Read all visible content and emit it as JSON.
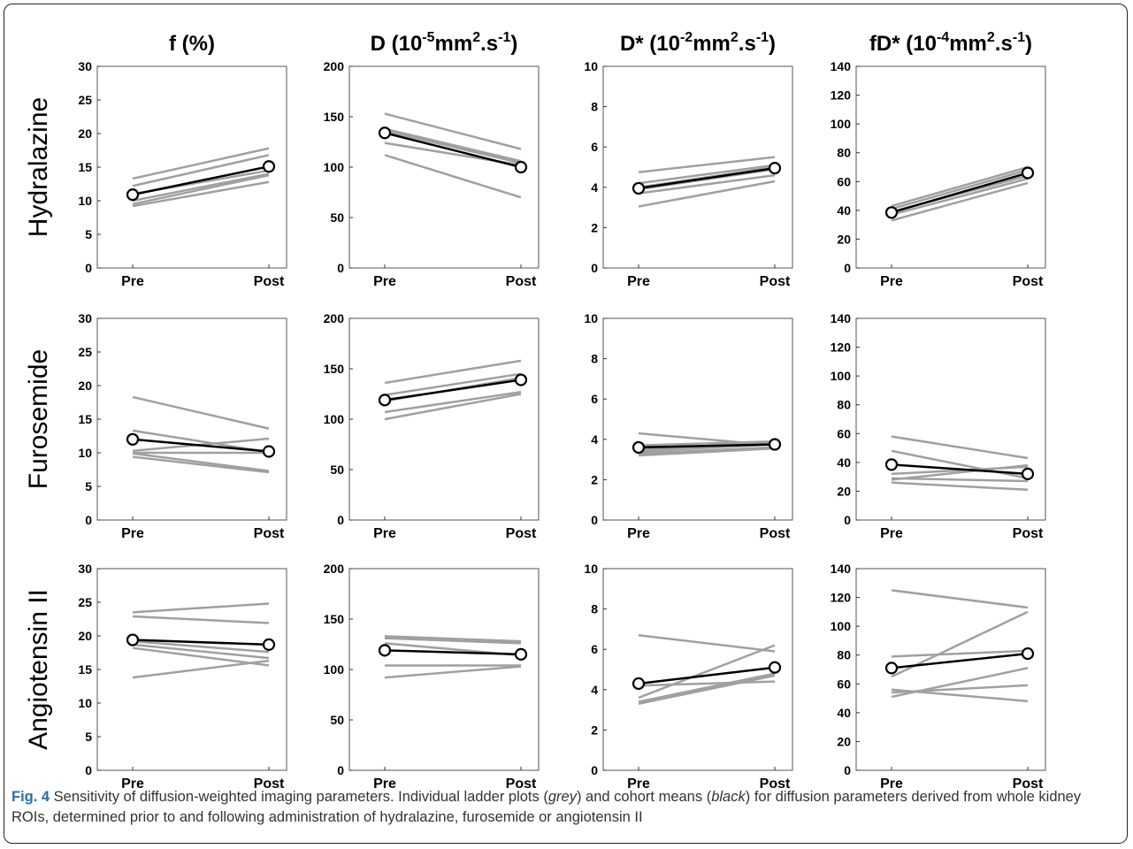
{
  "col_titles": [
    {
      "main": "f (%)"
    },
    {
      "main": "D (10",
      "sup1": "-5",
      "mid": "mm",
      "sup2": "2",
      "mid2": ".s",
      "sup3": "-1",
      "end": ")"
    },
    {
      "main": "D* (10",
      "sup1": "-2",
      "mid": "mm",
      "sup2": "2",
      "mid2": ".s",
      "sup3": "-1",
      "end": ")"
    },
    {
      "main": "fD* (10",
      "sup1": "-4",
      "mid": "mm",
      "sup2": "2",
      "mid2": ".s",
      "sup3": "-1",
      "end": ")"
    }
  ],
  "row_labels": [
    "Hydralazine",
    "Furosemide",
    "Angiotensin II"
  ],
  "colors": {
    "individual": "#a0a0a0",
    "mean": "#000000"
  },
  "caption": {
    "label": "Fig. 4",
    "text_1": " Sensitivity of diffusion-weighted imaging parameters. Individual ladder plots (",
    "grey": "grey",
    "text_2": ") and cohort means (",
    "black": "black",
    "text_3": ") for diffusion parameters derived from whole kidney ROIs, determined prior to and following administration of hydralazine, furosemide or angiotensin II"
  },
  "chart_data": [
    {
      "type": "line",
      "row": "Hydralazine",
      "title": "f (%)",
      "categories": [
        "Pre",
        "Post"
      ],
      "ylim": [
        0,
        30
      ],
      "yticks": [
        0,
        5,
        10,
        15,
        20,
        25,
        30
      ],
      "series": [
        {
          "values": [
            13.3,
            17.8
          ]
        },
        {
          "values": [
            12.2,
            16.8
          ]
        },
        {
          "values": [
            11.0,
            14.5
          ]
        },
        {
          "values": [
            10.0,
            14.0
          ]
        },
        {
          "values": [
            9.5,
            13.8
          ]
        },
        {
          "values": [
            9.2,
            12.8
          ]
        }
      ],
      "mean": {
        "values": [
          10.9,
          15.1
        ]
      }
    },
    {
      "type": "line",
      "row": "Hydralazine",
      "title": "D",
      "categories": [
        "Pre",
        "Post"
      ],
      "ylim": [
        0,
        200
      ],
      "yticks": [
        0,
        50,
        100,
        150,
        200
      ],
      "series": [
        {
          "values": [
            153,
            118
          ]
        },
        {
          "values": [
            138,
            106
          ]
        },
        {
          "values": [
            136,
            104
          ]
        },
        {
          "values": [
            124,
            102
          ]
        },
        {
          "values": [
            112,
            70
          ]
        }
      ],
      "mean": {
        "values": [
          134,
          100
        ]
      }
    },
    {
      "type": "line",
      "row": "Hydralazine",
      "title": "D*",
      "categories": [
        "Pre",
        "Post"
      ],
      "ylim": [
        0,
        10
      ],
      "yticks": [
        0,
        2,
        4,
        6,
        8,
        10
      ],
      "series": [
        {
          "values": [
            4.75,
            5.5
          ]
        },
        {
          "values": [
            4.2,
            5.1
          ]
        },
        {
          "values": [
            4.0,
            5.0
          ]
        },
        {
          "values": [
            3.9,
            4.9
          ]
        },
        {
          "values": [
            3.7,
            4.6
          ]
        },
        {
          "values": [
            3.05,
            4.3
          ]
        }
      ],
      "mean": {
        "values": [
          3.95,
          4.95
        ]
      }
    },
    {
      "type": "line",
      "row": "Hydralazine",
      "title": "fD*",
      "categories": [
        "Pre",
        "Post"
      ],
      "ylim": [
        0,
        140
      ],
      "yticks": [
        0,
        20,
        40,
        60,
        80,
        100,
        120,
        140
      ],
      "series": [
        {
          "values": [
            43,
            70
          ]
        },
        {
          "values": [
            41,
            68
          ]
        },
        {
          "values": [
            39,
            64
          ]
        },
        {
          "values": [
            37,
            62
          ]
        },
        {
          "values": [
            33,
            59
          ]
        }
      ],
      "mean": {
        "values": [
          38.5,
          66
        ]
      }
    },
    {
      "type": "line",
      "row": "Furosemide",
      "title": "f (%)",
      "categories": [
        "Pre",
        "Post"
      ],
      "ylim": [
        0,
        30
      ],
      "yticks": [
        0,
        5,
        10,
        15,
        20,
        25,
        30
      ],
      "series": [
        {
          "values": [
            18.3,
            13.6
          ]
        },
        {
          "values": [
            13.3,
            10.1
          ]
        },
        {
          "values": [
            10.3,
            12.1
          ]
        },
        {
          "values": [
            10.0,
            10.0
          ]
        },
        {
          "values": [
            9.9,
            7.3
          ]
        },
        {
          "values": [
            9.4,
            7.1
          ]
        }
      ],
      "mean": {
        "values": [
          12.0,
          10.2
        ]
      }
    },
    {
      "type": "line",
      "row": "Furosemide",
      "title": "D",
      "categories": [
        "Pre",
        "Post"
      ],
      "ylim": [
        0,
        200
      ],
      "yticks": [
        0,
        50,
        100,
        150,
        200
      ],
      "series": [
        {
          "values": [
            136,
            158
          ]
        },
        {
          "values": [
            124,
            145
          ]
        },
        {
          "values": [
            118,
            141
          ]
        },
        {
          "values": [
            107,
            127
          ]
        },
        {
          "values": [
            100,
            125
          ]
        }
      ],
      "mean": {
        "values": [
          119,
          139
        ]
      }
    },
    {
      "type": "line",
      "row": "Furosemide",
      "title": "D*",
      "categories": [
        "Pre",
        "Post"
      ],
      "ylim": [
        0,
        10
      ],
      "yticks": [
        0,
        2,
        4,
        6,
        8,
        10
      ],
      "series": [
        {
          "values": [
            4.3,
            3.7
          ]
        },
        {
          "values": [
            3.7,
            3.9
          ]
        },
        {
          "values": [
            3.5,
            3.85
          ]
        },
        {
          "values": [
            3.4,
            3.75
          ]
        },
        {
          "values": [
            3.3,
            3.6
          ]
        },
        {
          "values": [
            3.2,
            3.55
          ]
        }
      ],
      "mean": {
        "values": [
          3.6,
          3.75
        ]
      }
    },
    {
      "type": "line",
      "row": "Furosemide",
      "title": "fD*",
      "categories": [
        "Pre",
        "Post"
      ],
      "ylim": [
        0,
        140
      ],
      "yticks": [
        0,
        20,
        40,
        60,
        80,
        100,
        120,
        140
      ],
      "series": [
        {
          "values": [
            58,
            43
          ]
        },
        {
          "values": [
            48,
            29
          ]
        },
        {
          "values": [
            32,
            37
          ]
        },
        {
          "values": [
            29,
            27
          ]
        },
        {
          "values": [
            28,
            38
          ]
        },
        {
          "values": [
            26,
            21
          ]
        }
      ],
      "mean": {
        "values": [
          38.5,
          32
        ]
      }
    },
    {
      "type": "line",
      "row": "Angiotensin II",
      "title": "f (%)",
      "categories": [
        "Pre",
        "Post"
      ],
      "ylim": [
        0,
        30
      ],
      "yticks": [
        0,
        5,
        10,
        15,
        20,
        25,
        30
      ],
      "series": [
        {
          "values": [
            23.5,
            24.8
          ]
        },
        {
          "values": [
            22.9,
            21.9
          ]
        },
        {
          "values": [
            19.2,
            17.6
          ]
        },
        {
          "values": [
            18.7,
            16.7
          ]
        },
        {
          "values": [
            18.2,
            15.6
          ]
        },
        {
          "values": [
            13.8,
            16.3
          ]
        }
      ],
      "mean": {
        "values": [
          19.4,
          18.7
        ]
      }
    },
    {
      "type": "line",
      "row": "Angiotensin II",
      "title": "D",
      "categories": [
        "Pre",
        "Post"
      ],
      "ylim": [
        0,
        200
      ],
      "yticks": [
        0,
        50,
        100,
        150,
        200
      ],
      "series": [
        {
          "values": [
            133,
            128
          ]
        },
        {
          "values": [
            131,
            126
          ]
        },
        {
          "values": [
            126,
            114
          ]
        },
        {
          "values": [
            104,
            104
          ]
        },
        {
          "values": [
            92,
            103
          ]
        }
      ],
      "mean": {
        "values": [
          119,
          115
        ]
      }
    },
    {
      "type": "line",
      "row": "Angiotensin II",
      "title": "D*",
      "categories": [
        "Pre",
        "Post"
      ],
      "ylim": [
        0,
        10
      ],
      "yticks": [
        0,
        2,
        4,
        6,
        8,
        10
      ],
      "series": [
        {
          "values": [
            6.7,
            5.9
          ]
        },
        {
          "values": [
            3.6,
            6.2
          ]
        },
        {
          "values": [
            3.4,
            4.8
          ]
        },
        {
          "values": [
            3.3,
            4.7
          ]
        },
        {
          "values": [
            4.2,
            4.4
          ]
        }
      ],
      "mean": {
        "values": [
          4.3,
          5.1
        ]
      }
    },
    {
      "type": "line",
      "row": "Angiotensin II",
      "title": "fD*",
      "categories": [
        "Pre",
        "Post"
      ],
      "ylim": [
        0,
        140
      ],
      "yticks": [
        0,
        20,
        40,
        60,
        80,
        100,
        120,
        140
      ],
      "series": [
        {
          "values": [
            125,
            113
          ]
        },
        {
          "values": [
            65,
            110
          ]
        },
        {
          "values": [
            79,
            83
          ]
        },
        {
          "values": [
            56,
            48
          ]
        },
        {
          "values": [
            54,
            59
          ]
        },
        {
          "values": [
            51,
            71
          ]
        }
      ],
      "mean": {
        "values": [
          71,
          81
        ]
      }
    }
  ]
}
